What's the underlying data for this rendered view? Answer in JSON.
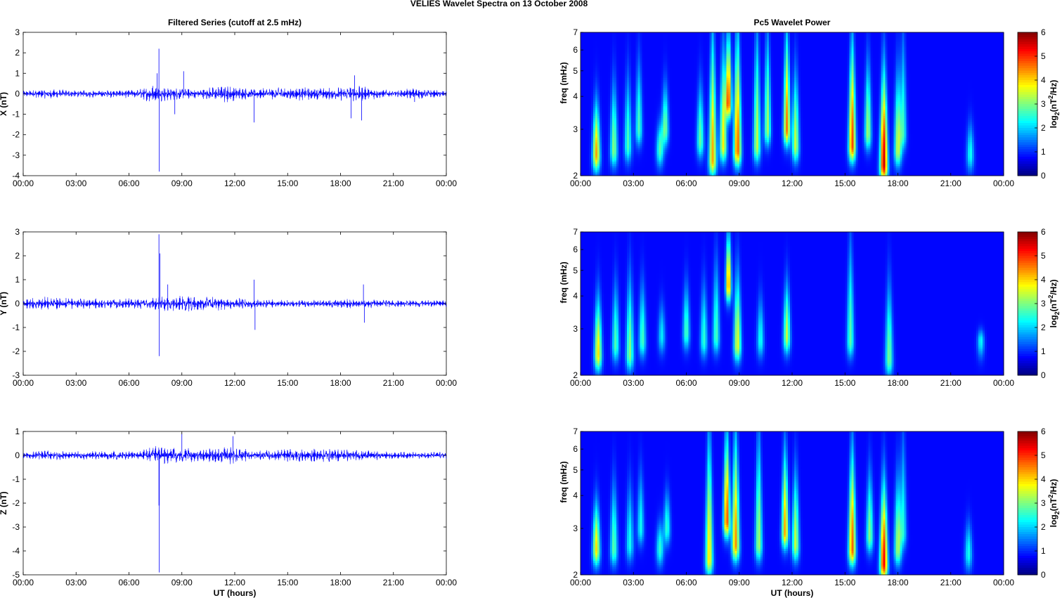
{
  "figure": {
    "title": "VELIES Wavelet Spectra on 13 October   2008"
  },
  "chart_data": [
    {
      "type": "line",
      "panel": "X",
      "title": "Filtered Series (cutoff at 2.5 mHz)",
      "xlabel": "",
      "ylabel": "X (nT)",
      "x_ticks": [
        "00:00",
        "03:00",
        "06:00",
        "09:00",
        "12:00",
        "15:00",
        "18:00",
        "21:00",
        "00:00"
      ],
      "xlim": [
        0,
        24
      ],
      "ylim": [
        -4,
        3
      ],
      "y_ticks": [
        3,
        2,
        1,
        0,
        -1,
        -2,
        -3,
        -4
      ],
      "color": "#0000ff",
      "envelope": [
        {
          "x": 0.0,
          "a": 0.15
        },
        {
          "x": 1.0,
          "a": 0.25
        },
        {
          "x": 3.0,
          "a": 0.18
        },
        {
          "x": 6.5,
          "a": 0.22
        },
        {
          "x": 7.3,
          "a": 0.45
        },
        {
          "x": 8.2,
          "a": 0.35
        },
        {
          "x": 9.0,
          "a": 0.3
        },
        {
          "x": 10.0,
          "a": 0.25
        },
        {
          "x": 11.5,
          "a": 0.45
        },
        {
          "x": 13.0,
          "a": 0.25
        },
        {
          "x": 15.5,
          "a": 0.35
        },
        {
          "x": 17.0,
          "a": 0.3
        },
        {
          "x": 19.0,
          "a": 0.4
        },
        {
          "x": 21.0,
          "a": 0.15
        },
        {
          "x": 22.2,
          "a": 0.3
        },
        {
          "x": 24.0,
          "a": 0.15
        }
      ],
      "spikes": [
        {
          "x": 7.7,
          "y": 2.2
        },
        {
          "x": 7.72,
          "y": -3.8
        },
        {
          "x": 7.6,
          "y": 1.0
        },
        {
          "x": 8.6,
          "y": -1.0
        },
        {
          "x": 9.1,
          "y": 1.1
        },
        {
          "x": 13.1,
          "y": -1.4
        },
        {
          "x": 18.6,
          "y": -1.2
        },
        {
          "x": 18.8,
          "y": 0.9
        },
        {
          "x": 19.2,
          "y": -1.3
        },
        {
          "x": 22.2,
          "y": -0.4
        }
      ]
    },
    {
      "type": "line",
      "panel": "Y",
      "title": "",
      "xlabel": "",
      "ylabel": "Y (nT)",
      "x_ticks": [
        "00:00",
        "03:00",
        "06:00",
        "09:00",
        "12:00",
        "15:00",
        "18:00",
        "21:00",
        "00:00"
      ],
      "xlim": [
        0,
        24
      ],
      "ylim": [
        -3,
        3
      ],
      "y_ticks": [
        3,
        2,
        1,
        0,
        -1,
        -2,
        -3
      ],
      "color": "#0000ff",
      "envelope": [
        {
          "x": 0.0,
          "a": 0.2
        },
        {
          "x": 1.0,
          "a": 0.3
        },
        {
          "x": 3.0,
          "a": 0.22
        },
        {
          "x": 6.5,
          "a": 0.22
        },
        {
          "x": 7.5,
          "a": 0.3
        },
        {
          "x": 9.0,
          "a": 0.35
        },
        {
          "x": 11.0,
          "a": 0.3
        },
        {
          "x": 13.0,
          "a": 0.2
        },
        {
          "x": 15.5,
          "a": 0.15
        },
        {
          "x": 18.5,
          "a": 0.2
        },
        {
          "x": 21.0,
          "a": 0.15
        },
        {
          "x": 24.0,
          "a": 0.15
        }
      ],
      "spikes": [
        {
          "x": 7.7,
          "y": 2.9
        },
        {
          "x": 7.72,
          "y": -2.2
        },
        {
          "x": 7.75,
          "y": 2.1
        },
        {
          "x": 8.2,
          "y": 0.8
        },
        {
          "x": 13.1,
          "y": 1.0
        },
        {
          "x": 13.15,
          "y": -1.1
        },
        {
          "x": 19.3,
          "y": 0.8
        },
        {
          "x": 19.35,
          "y": -0.8
        }
      ]
    },
    {
      "type": "line",
      "panel": "Z",
      "title": "",
      "xlabel": "UT (hours)",
      "ylabel": "Z (nT)",
      "x_ticks": [
        "00:00",
        "03:00",
        "06:00",
        "09:00",
        "12:00",
        "15:00",
        "18:00",
        "21:00",
        "00:00"
      ],
      "xlim": [
        0,
        24
      ],
      "ylim": [
        -5,
        1
      ],
      "y_ticks": [
        1,
        0,
        -1,
        -2,
        -3,
        -4,
        -5
      ],
      "color": "#0000ff",
      "envelope": [
        {
          "x": 0.0,
          "a": 0.15
        },
        {
          "x": 1.0,
          "a": 0.22
        },
        {
          "x": 3.0,
          "a": 0.18
        },
        {
          "x": 6.5,
          "a": 0.2
        },
        {
          "x": 7.5,
          "a": 0.4
        },
        {
          "x": 9.0,
          "a": 0.35
        },
        {
          "x": 10.0,
          "a": 0.25
        },
        {
          "x": 11.8,
          "a": 0.4
        },
        {
          "x": 13.0,
          "a": 0.2
        },
        {
          "x": 15.5,
          "a": 0.3
        },
        {
          "x": 17.5,
          "a": 0.3
        },
        {
          "x": 19.0,
          "a": 0.25
        },
        {
          "x": 21.0,
          "a": 0.15
        },
        {
          "x": 24.0,
          "a": 0.15
        }
      ],
      "spikes": [
        {
          "x": 7.7,
          "y": -2.1
        },
        {
          "x": 7.72,
          "y": -4.9
        },
        {
          "x": 9.0,
          "y": 0.9
        },
        {
          "x": 11.9,
          "y": 0.8
        }
      ]
    },
    {
      "type": "heatmap",
      "panel": "X",
      "title": "Pc5 Wavelet Power",
      "xlabel": "",
      "ylabel": "freq (mHz)",
      "x_ticks": [
        "00:00",
        "03:00",
        "06:00",
        "09:00",
        "12:00",
        "15:00",
        "18:00",
        "21:00",
        "00:00"
      ],
      "xlim": [
        0,
        24
      ],
      "ylim": [
        2,
        7
      ],
      "y_scale": "log",
      "y_ticks": [
        2,
        3,
        4,
        5,
        6,
        7
      ],
      "colorbar": {
        "label": "log2(nT2/Hz)",
        "label_main": "log",
        "label_sub1": "2",
        "label_mid": "(nT",
        "label_sup": "2",
        "label_end": "/Hz)",
        "range": [
          0,
          6
        ],
        "ticks": [
          0,
          1,
          2,
          3,
          4,
          5,
          6
        ],
        "colormap": "jet"
      },
      "blobs": [
        {
          "t": 0.9,
          "f": 2.4,
          "v": 4.0,
          "top": 3.8
        },
        {
          "t": 1.9,
          "f": 2.5,
          "v": 2.6,
          "top": 4.5
        },
        {
          "t": 2.7,
          "f": 2.6,
          "v": 2.2,
          "top": 4.8
        },
        {
          "t": 3.3,
          "f": 3.0,
          "v": 2.2,
          "top": 5.5
        },
        {
          "t": 4.5,
          "f": 2.5,
          "v": 2.2,
          "top": 3.2
        },
        {
          "t": 4.8,
          "f": 3.0,
          "v": 2.5,
          "top": 4.5
        },
        {
          "t": 6.8,
          "f": 2.7,
          "v": 2.4,
          "top": 4.5
        },
        {
          "t": 7.5,
          "f": 2.3,
          "v": 4.0,
          "top": 7.0
        },
        {
          "t": 8.1,
          "f": 2.6,
          "v": 3.5,
          "top": 6.0
        },
        {
          "t": 8.4,
          "f": 3.8,
          "v": 4.8,
          "top": 7.0
        },
        {
          "t": 8.9,
          "f": 2.5,
          "v": 4.5,
          "top": 7.0
        },
        {
          "t": 10.0,
          "f": 2.6,
          "v": 3.0,
          "top": 7.0
        },
        {
          "t": 10.6,
          "f": 3.0,
          "v": 2.8,
          "top": 7.0
        },
        {
          "t": 11.7,
          "f": 3.0,
          "v": 4.3,
          "top": 7.0
        },
        {
          "t": 12.2,
          "f": 2.6,
          "v": 3.0,
          "top": 5.0
        },
        {
          "t": 15.4,
          "f": 2.6,
          "v": 4.7,
          "top": 6.5
        },
        {
          "t": 16.3,
          "f": 2.9,
          "v": 2.8,
          "top": 5.5
        },
        {
          "t": 17.2,
          "f": 2.2,
          "v": 5.5,
          "top": 5.0
        },
        {
          "t": 18.0,
          "f": 2.5,
          "v": 3.0,
          "top": 5.0
        },
        {
          "t": 18.3,
          "f": 2.9,
          "v": 2.0,
          "top": 7.0
        },
        {
          "t": 22.1,
          "f": 2.4,
          "v": 1.8,
          "top": 3.2
        }
      ]
    },
    {
      "type": "heatmap",
      "panel": "Y",
      "title": "",
      "xlabel": "",
      "ylabel": "freq (mHz)",
      "x_ticks": [
        "00:00",
        "03:00",
        "06:00",
        "09:00",
        "12:00",
        "15:00",
        "18:00",
        "21:00",
        "00:00"
      ],
      "xlim": [
        0,
        24
      ],
      "ylim": [
        2,
        7
      ],
      "y_scale": "log",
      "y_ticks": [
        2,
        3,
        4,
        5,
        6,
        7
      ],
      "colorbar": {
        "label": "log2(nT2/Hz)",
        "label_main": "log",
        "label_sub1": "2",
        "label_mid": "(nT",
        "label_sup": "2",
        "label_end": "/Hz)",
        "range": [
          0,
          6
        ],
        "ticks": [
          0,
          1,
          2,
          3,
          4,
          5,
          6
        ],
        "colormap": "jet"
      },
      "blobs": [
        {
          "t": 1.0,
          "f": 2.4,
          "v": 3.6,
          "top": 4.0
        },
        {
          "t": 2.0,
          "f": 2.6,
          "v": 2.2,
          "top": 4.5
        },
        {
          "t": 2.8,
          "f": 2.4,
          "v": 2.6,
          "top": 4.8
        },
        {
          "t": 3.5,
          "f": 2.7,
          "v": 2.2,
          "top": 4.5
        },
        {
          "t": 4.6,
          "f": 2.8,
          "v": 1.6,
          "top": 3.8
        },
        {
          "t": 6.0,
          "f": 2.9,
          "v": 2.2,
          "top": 4.5
        },
        {
          "t": 7.0,
          "f": 2.7,
          "v": 2.0,
          "top": 4.5
        },
        {
          "t": 7.7,
          "f": 2.8,
          "v": 2.2,
          "top": 5.5
        },
        {
          "t": 8.4,
          "f": 4.4,
          "v": 4.3,
          "top": 7.0
        },
        {
          "t": 8.9,
          "f": 2.6,
          "v": 3.2,
          "top": 5.0
        },
        {
          "t": 10.2,
          "f": 2.7,
          "v": 1.8,
          "top": 4.0
        },
        {
          "t": 11.7,
          "f": 2.8,
          "v": 3.0,
          "top": 4.5
        },
        {
          "t": 15.3,
          "f": 2.7,
          "v": 2.3,
          "top": 6.5
        },
        {
          "t": 17.5,
          "f": 2.3,
          "v": 2.5,
          "top": 4.5
        },
        {
          "t": 22.7,
          "f": 2.7,
          "v": 1.7,
          "top": 3.0
        }
      ]
    },
    {
      "type": "heatmap",
      "panel": "Z",
      "title": "",
      "xlabel": "UT (hours)",
      "ylabel": "freq (mHz)",
      "x_ticks": [
        "00:00",
        "03:00",
        "06:00",
        "09:00",
        "12:00",
        "15:00",
        "18:00",
        "21:00",
        "00:00"
      ],
      "xlim": [
        0,
        24
      ],
      "ylim": [
        2,
        7
      ],
      "y_scale": "log",
      "y_ticks": [
        2,
        3,
        4,
        5,
        6,
        7
      ],
      "colorbar": {
        "label": "log2(nT2/Hz)",
        "label_main": "log",
        "label_sub1": "2",
        "label_mid": "(nT",
        "label_sup": "2",
        "label_end": "/Hz)",
        "range": [
          0,
          6
        ],
        "ticks": [
          0,
          1,
          2,
          3,
          4,
          5,
          6
        ],
        "colormap": "jet"
      },
      "blobs": [
        {
          "t": 0.9,
          "f": 2.5,
          "v": 3.6,
          "top": 3.8
        },
        {
          "t": 1.9,
          "f": 2.5,
          "v": 2.3,
          "top": 4.5
        },
        {
          "t": 2.8,
          "f": 2.6,
          "v": 1.8,
          "top": 4.5
        },
        {
          "t": 3.4,
          "f": 3.0,
          "v": 1.8,
          "top": 5.0
        },
        {
          "t": 4.5,
          "f": 2.5,
          "v": 2.0,
          "top": 3.2
        },
        {
          "t": 4.9,
          "f": 3.0,
          "v": 2.0,
          "top": 4.2
        },
        {
          "t": 7.3,
          "f": 2.3,
          "v": 3.6,
          "top": 7.0
        },
        {
          "t": 8.3,
          "f": 3.2,
          "v": 4.7,
          "top": 7.0
        },
        {
          "t": 8.8,
          "f": 2.6,
          "v": 4.2,
          "top": 7.0
        },
        {
          "t": 10.1,
          "f": 2.6,
          "v": 2.8,
          "top": 7.0
        },
        {
          "t": 11.6,
          "f": 2.9,
          "v": 4.0,
          "top": 6.0
        },
        {
          "t": 12.2,
          "f": 2.6,
          "v": 3.0,
          "top": 5.0
        },
        {
          "t": 15.4,
          "f": 2.5,
          "v": 4.5,
          "top": 6.0
        },
        {
          "t": 16.4,
          "f": 2.8,
          "v": 2.6,
          "top": 5.0
        },
        {
          "t": 17.2,
          "f": 2.2,
          "v": 5.2,
          "top": 4.5
        },
        {
          "t": 18.0,
          "f": 2.5,
          "v": 2.8,
          "top": 4.8
        },
        {
          "t": 18.3,
          "f": 2.9,
          "v": 1.8,
          "top": 7.0
        },
        {
          "t": 22.0,
          "f": 2.4,
          "v": 1.8,
          "top": 3.2
        }
      ]
    }
  ]
}
